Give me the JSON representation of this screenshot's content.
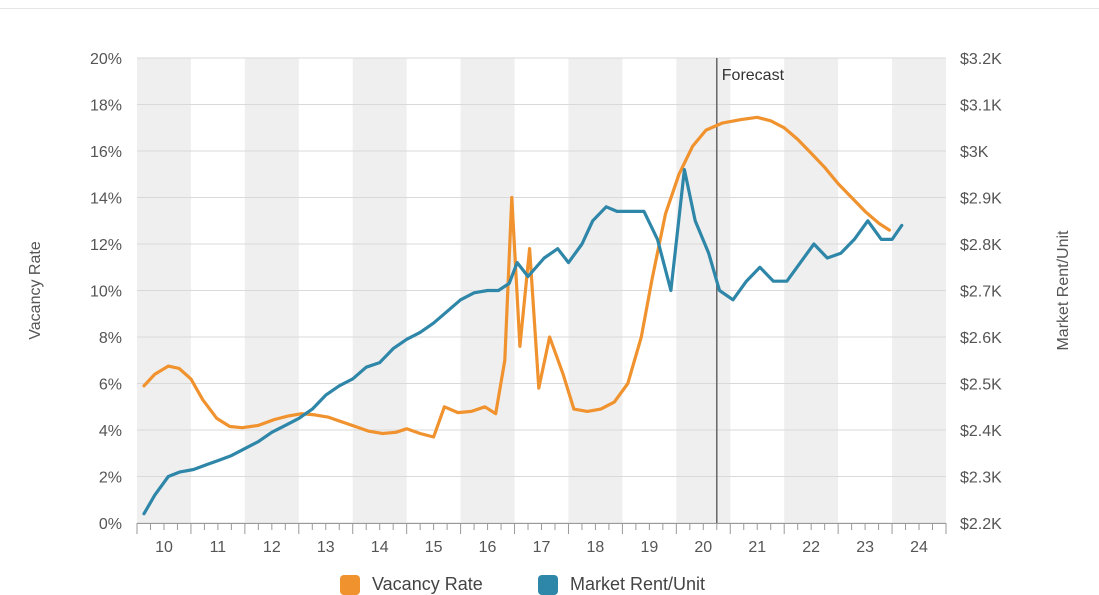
{
  "chart_data": {
    "type": "line",
    "y_left": {
      "label": "Vacancy Rate",
      "ticks": [
        "0%",
        "2%",
        "4%",
        "6%",
        "8%",
        "10%",
        "12%",
        "14%",
        "16%",
        "18%",
        "20%"
      ],
      "range": [
        0,
        20
      ]
    },
    "y_right": {
      "label": "Market Rent/Unit",
      "ticks": [
        "$2.2K",
        "$2.3K",
        "$2.4K",
        "$2.5K",
        "$2.6K",
        "$2.7K",
        "$2.8K",
        "$2.9K",
        "$3K",
        "$3.1K",
        "$3.2K"
      ],
      "range": [
        2200,
        3200
      ]
    },
    "x_ticks": [
      "10",
      "11",
      "12",
      "13",
      "14",
      "15",
      "16",
      "17",
      "18",
      "19",
      "20",
      "21",
      "22",
      "23",
      "24"
    ],
    "x_range": [
      9.5,
      24.5
    ],
    "forecast": {
      "label": "Forecast",
      "x": 20.25
    },
    "shaded_years": [
      10,
      12,
      14,
      16,
      18,
      20,
      22,
      24
    ],
    "series": [
      {
        "name": "Vacancy Rate",
        "color": "#f0922e",
        "axis": "left",
        "points": [
          [
            9.63,
            5.9
          ],
          [
            9.83,
            6.4
          ],
          [
            10.08,
            6.75
          ],
          [
            10.28,
            6.65
          ],
          [
            10.5,
            6.2
          ],
          [
            10.72,
            5.3
          ],
          [
            10.98,
            4.5
          ],
          [
            11.22,
            4.15
          ],
          [
            11.45,
            4.1
          ],
          [
            11.75,
            4.2
          ],
          [
            12.05,
            4.45
          ],
          [
            12.3,
            4.6
          ],
          [
            12.55,
            4.7
          ],
          [
            12.8,
            4.65
          ],
          [
            13.05,
            4.55
          ],
          [
            13.3,
            4.35
          ],
          [
            13.55,
            4.15
          ],
          [
            13.8,
            3.95
          ],
          [
            14.05,
            3.85
          ],
          [
            14.3,
            3.9
          ],
          [
            14.5,
            4.05
          ],
          [
            14.75,
            3.85
          ],
          [
            15.0,
            3.7
          ],
          [
            15.2,
            5.0
          ],
          [
            15.45,
            4.75
          ],
          [
            15.7,
            4.8
          ],
          [
            15.95,
            5.0
          ],
          [
            16.15,
            4.7
          ],
          [
            16.32,
            7.0
          ],
          [
            16.45,
            14.0
          ],
          [
            16.6,
            7.6
          ],
          [
            16.78,
            11.8
          ],
          [
            16.95,
            5.8
          ],
          [
            17.15,
            8.0
          ],
          [
            17.4,
            6.4
          ],
          [
            17.6,
            4.9
          ],
          [
            17.85,
            4.8
          ],
          [
            18.1,
            4.9
          ],
          [
            18.35,
            5.2
          ],
          [
            18.6,
            6.0
          ],
          [
            18.85,
            8.0
          ],
          [
            19.05,
            10.5
          ],
          [
            19.3,
            13.3
          ],
          [
            19.55,
            15.0
          ],
          [
            19.8,
            16.2
          ],
          [
            20.05,
            16.9
          ],
          [
            20.35,
            17.2
          ],
          [
            20.7,
            17.35
          ],
          [
            21.0,
            17.45
          ],
          [
            21.25,
            17.3
          ],
          [
            21.5,
            17.0
          ],
          [
            21.75,
            16.5
          ],
          [
            22.0,
            15.9
          ],
          [
            22.25,
            15.3
          ],
          [
            22.5,
            14.6
          ],
          [
            22.75,
            14.0
          ],
          [
            23.0,
            13.4
          ],
          [
            23.25,
            12.9
          ],
          [
            23.45,
            12.6
          ]
        ]
      },
      {
        "name": "Market Rent/Unit",
        "color": "#2e86a8",
        "axis": "right",
        "points": [
          [
            9.63,
            2220
          ],
          [
            9.83,
            2260
          ],
          [
            10.08,
            2300
          ],
          [
            10.3,
            2310
          ],
          [
            10.55,
            2315
          ],
          [
            10.78,
            2325
          ],
          [
            11.02,
            2335
          ],
          [
            11.25,
            2345
          ],
          [
            11.5,
            2360
          ],
          [
            11.75,
            2375
          ],
          [
            12.0,
            2395
          ],
          [
            12.25,
            2410
          ],
          [
            12.5,
            2425
          ],
          [
            12.75,
            2445
          ],
          [
            13.0,
            2475
          ],
          [
            13.25,
            2495
          ],
          [
            13.5,
            2510
          ],
          [
            13.75,
            2535
          ],
          [
            14.0,
            2545
          ],
          [
            14.25,
            2575
          ],
          [
            14.5,
            2595
          ],
          [
            14.75,
            2610
          ],
          [
            15.0,
            2630
          ],
          [
            15.25,
            2655
          ],
          [
            15.5,
            2680
          ],
          [
            15.75,
            2695
          ],
          [
            16.0,
            2700
          ],
          [
            16.2,
            2700
          ],
          [
            16.4,
            2715
          ],
          [
            16.55,
            2760
          ],
          [
            16.75,
            2730
          ],
          [
            17.05,
            2770
          ],
          [
            17.3,
            2790
          ],
          [
            17.5,
            2760
          ],
          [
            17.75,
            2800
          ],
          [
            17.95,
            2850
          ],
          [
            18.2,
            2880
          ],
          [
            18.4,
            2870
          ],
          [
            18.65,
            2870
          ],
          [
            18.9,
            2870
          ],
          [
            19.15,
            2810
          ],
          [
            19.4,
            2700
          ],
          [
            19.65,
            2960
          ],
          [
            19.85,
            2850
          ],
          [
            20.1,
            2780
          ],
          [
            20.3,
            2700
          ],
          [
            20.55,
            2680
          ],
          [
            20.8,
            2720
          ],
          [
            21.05,
            2750
          ],
          [
            21.3,
            2720
          ],
          [
            21.55,
            2720
          ],
          [
            21.8,
            2760
          ],
          [
            22.05,
            2800
          ],
          [
            22.3,
            2770
          ],
          [
            22.55,
            2780
          ],
          [
            22.8,
            2810
          ],
          [
            23.05,
            2850
          ],
          [
            23.3,
            2810
          ],
          [
            23.5,
            2810
          ],
          [
            23.68,
            2840
          ]
        ]
      }
    ],
    "legend_position": "bottom"
  },
  "colors": {
    "vacancy": "#f0922e",
    "rent": "#2e86a8",
    "band": "#efefef",
    "grid": "#d9d9d9",
    "forecast_line": "#666666"
  }
}
